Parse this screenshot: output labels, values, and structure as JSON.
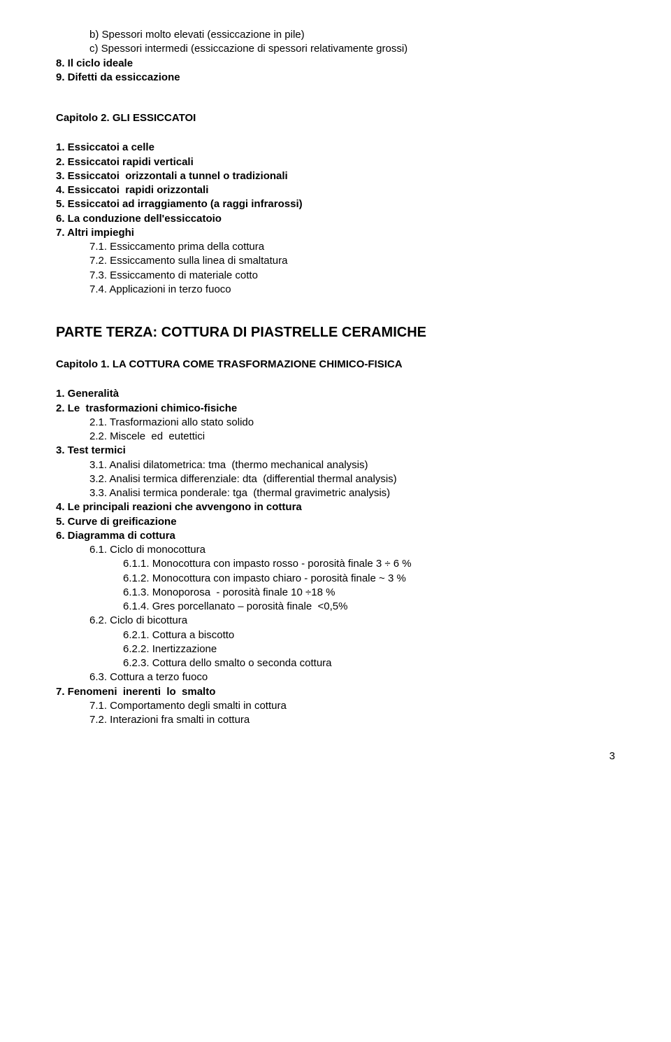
{
  "top": {
    "l1": "b) Spessori molto elevati (essiccazione in pile)",
    "l2": "c) Spessori intermedi (essiccazione di spessori relativamente grossi)",
    "l3": "8. Il ciclo ideale",
    "l4": "9. Difetti da essiccazione"
  },
  "cap2": {
    "title": "Capitolo 2. GLI ESSICCATOI",
    "i1": "1. Essiccatoi a celle",
    "i2": "2. Essiccatoi rapidi verticali",
    "i3": "3. Essiccatoi  orizzontali a tunnel o tradizionali",
    "i4": "4. Essiccatoi  rapidi orizzontali",
    "i5": "5. Essiccatoi ad irraggiamento (a raggi infrarossi)",
    "i6": "6. La conduzione dell'essiccatoio",
    "i7": "7. Altri impieghi",
    "s71": "7.1. Essiccamento prima della cottura",
    "s72": "7.2. Essiccamento sulla linea di smaltatura",
    "s73": "7.3. Essiccamento di materiale cotto",
    "s74": "7.4. Applicazioni in terzo fuoco"
  },
  "parte3": {
    "title": "PARTE TERZA: COTTURA DI PIASTRELLE CERAMICHE"
  },
  "cap1": {
    "title": "Capitolo 1. LA COTTURA COME TRASFORMAZIONE CHIMICO-FISICA",
    "i1": "1. Generalità",
    "i2": "2. Le  trasformazioni chimico-fisiche",
    "s21": "2.1. Trasformazioni allo stato solido",
    "s22": "2.2. Miscele  ed  eutettici",
    "i3": "3. Test termici",
    "s31": "3.1. Analisi dilatometrica: tma  (thermo mechanical analysis)",
    "s32": "3.2. Analisi termica differenziale: dta  (differential thermal analysis)",
    "s33": "3.3. Analisi termica ponderale: tga  (thermal gravimetric analysis)",
    "i4": "4. Le principali reazioni che avvengono in cottura",
    "i5": "5. Curve di greificazione",
    "i6": "6. Diagramma di cottura",
    "s61": "6.1. Ciclo di monocottura",
    "s611": "6.1.1. Monocottura con impasto rosso - porosità finale 3 ÷ 6 %",
    "s612": "6.1.2. Monocottura con impasto chiaro - porosità finale ~ 3 %",
    "s613": "6.1.3. Monoporosa  - porosità finale 10 ÷18 %",
    "s614": "6.1.4. Gres porcellanato – porosità finale  <0,5%",
    "s62": "6.2. Ciclo di bicottura",
    "s621": "6.2.1. Cottura a biscotto",
    "s622": "6.2.2. Inertizzazione",
    "s623": "6.2.3. Cottura dello smalto o seconda cottura",
    "s63": "6.3. Cottura a terzo fuoco",
    "i7": "7. Fenomeni  inerenti  lo  smalto",
    "s71": "7.1. Comportamento degli smalti in cottura",
    "s72": "7.2. Interazioni fra smalti in cottura"
  },
  "pagenum": "3"
}
